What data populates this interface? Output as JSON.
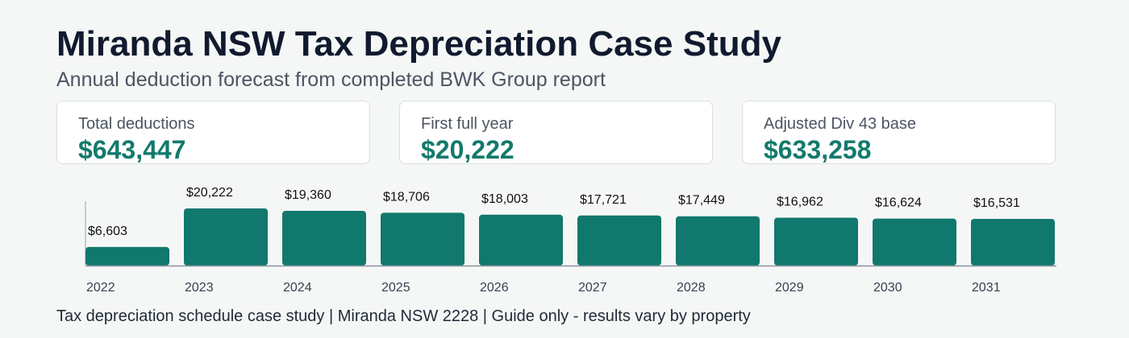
{
  "header": {
    "title": "Miranda NSW Tax Depreciation Case Study",
    "subtitle": "Annual deduction forecast from completed BWK Group report"
  },
  "cards": [
    {
      "label": "Total deductions",
      "value": "$643,447"
    },
    {
      "label": "First full year",
      "value": "$20,222"
    },
    {
      "label": "Adjusted Div 43 base",
      "value": "$633,258"
    }
  ],
  "chart_data": {
    "type": "bar",
    "title": "",
    "xlabel": "",
    "ylabel": "",
    "categories": [
      "2022",
      "2023",
      "2024",
      "2025",
      "2026",
      "2027",
      "2028",
      "2029",
      "2030",
      "2031"
    ],
    "values": [
      6603,
      20222,
      19360,
      18706,
      18003,
      17721,
      17449,
      16962,
      16624,
      16531
    ],
    "data_labels": [
      "$6,603",
      "$20,222",
      "$19,360",
      "$18,706",
      "$18,003",
      "$17,721",
      "$17,449",
      "$16,962",
      "$16,624",
      "$16,531"
    ],
    "ylim": [
      0,
      20222
    ],
    "grid": false,
    "bar_color": "#11786d"
  },
  "footer": {
    "note": "Tax depreciation schedule case study | Miranda NSW 2228 | Guide only - results vary by property"
  }
}
